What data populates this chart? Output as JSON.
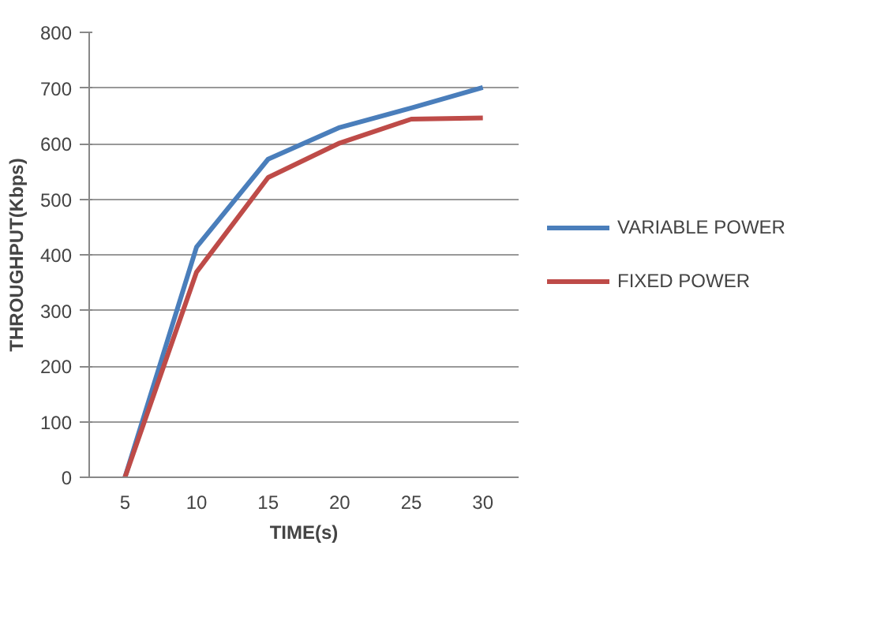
{
  "chart_data": {
    "type": "line",
    "xlabel": "TIME(s)",
    "ylabel": "THROUGHPUT(Kbps)",
    "categories": [
      "5",
      "10",
      "15",
      "20",
      "25",
      "30"
    ],
    "series": [
      {
        "name": "VARIABLE POWER",
        "color": "#4a7ebb",
        "values": [
          0,
          414,
          572,
          629,
          664,
          701
        ]
      },
      {
        "name": "FIXED POWER",
        "color": "#be4b48",
        "values": [
          0,
          369,
          539,
          601,
          644,
          646
        ]
      }
    ],
    "ylim": [
      0,
      800
    ],
    "yticks": [
      0,
      100,
      200,
      300,
      400,
      500,
      600,
      700,
      800
    ],
    "grid": "y",
    "legend": "right",
    "marker": "none",
    "line_style": "solid"
  }
}
